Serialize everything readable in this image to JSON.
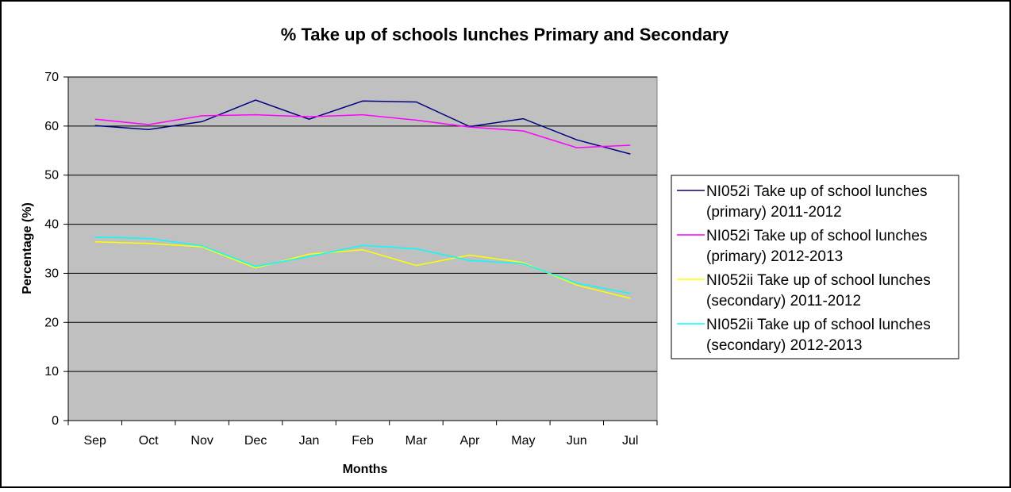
{
  "chart_data": {
    "type": "line",
    "title": "% Take up of schools lunches Primary and Secondary",
    "xlabel": "Months",
    "ylabel": "Percentage (%)",
    "categories": [
      "Sep",
      "Oct",
      "Nov",
      "Dec",
      "Jan",
      "Feb",
      "Mar",
      "Apr",
      "May",
      "Jun",
      "Jul"
    ],
    "ylim": [
      0,
      70
    ],
    "yticks": [
      "0",
      "10",
      "20",
      "30",
      "40",
      "50",
      "60",
      "70"
    ],
    "grid": true,
    "legend_position": "right",
    "plot_background": "#c0c0c0",
    "series": [
      {
        "legend_lines": [
          "NI052i Take up of school lunches",
          "(primary) 2011-2012"
        ],
        "color": "#000080",
        "values": [
          60.1,
          59.3,
          60.9,
          65.3,
          61.4,
          65.1,
          64.9,
          59.9,
          61.5,
          57.2,
          54.3
        ]
      },
      {
        "legend_lines": [
          "NI052i Take up of school lunches",
          "(primary) 2012-2013"
        ],
        "color": "#ff00ff",
        "values": [
          61.4,
          60.3,
          62.1,
          62.3,
          61.9,
          62.3,
          61.2,
          59.8,
          59.0,
          55.6,
          56.1
        ]
      },
      {
        "legend_lines": [
          "NI052ii Take up of school lunches",
          "(secondary) 2011-2012"
        ],
        "color": "#ffff00",
        "values": [
          36.4,
          36.1,
          35.4,
          31.1,
          33.9,
          34.8,
          31.6,
          33.7,
          32.2,
          27.6,
          24.9
        ]
      },
      {
        "legend_lines": [
          "NI052ii Take up of school lunches",
          "(secondary) 2012-2013"
        ],
        "color": "#00ffff",
        "values": [
          37.4,
          37.1,
          35.6,
          31.4,
          33.4,
          35.7,
          35.0,
          32.6,
          32.0,
          28.0,
          25.9
        ]
      }
    ]
  }
}
